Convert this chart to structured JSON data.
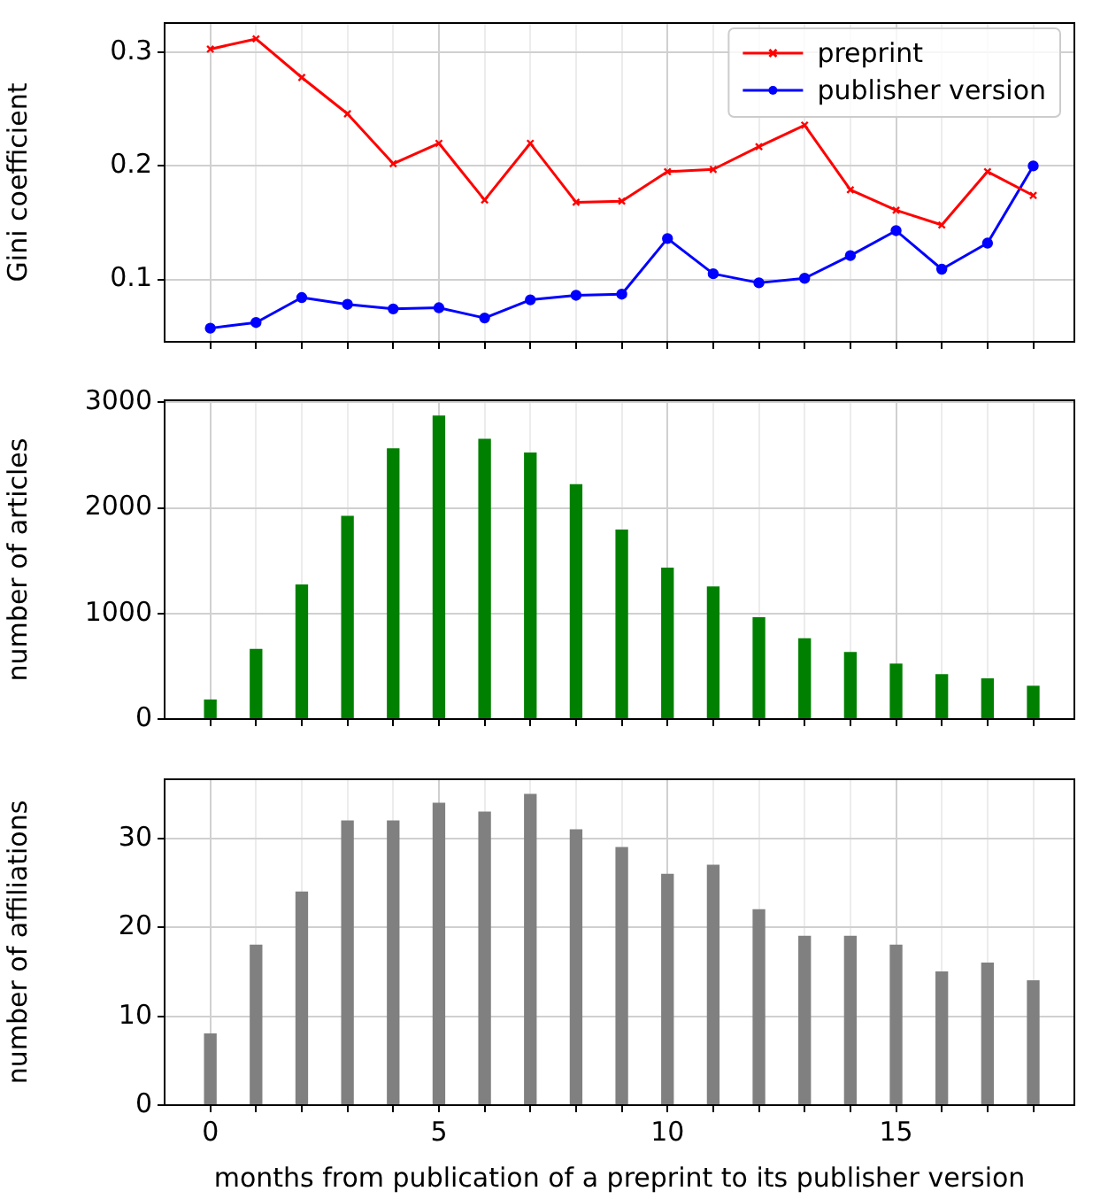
{
  "chart_data": [
    {
      "type": "line",
      "ylabel": "Gini coefficient",
      "x": [
        0,
        1,
        2,
        3,
        4,
        5,
        6,
        7,
        8,
        9,
        10,
        11,
        12,
        13,
        14,
        15,
        16,
        17,
        18
      ],
      "series": [
        {
          "name": "preprint",
          "color": "#ff0000",
          "marker": "cross",
          "values": [
            0.303,
            0.312,
            0.278,
            0.246,
            0.202,
            0.22,
            0.17,
            0.22,
            0.168,
            0.169,
            0.195,
            0.197,
            0.217,
            0.236,
            0.179,
            0.161,
            0.148,
            0.195,
            0.174
          ]
        },
        {
          "name": "publisher version",
          "color": "#0000ff",
          "marker": "circle",
          "values": [
            0.057,
            0.062,
            0.084,
            0.078,
            0.074,
            0.075,
            0.066,
            0.082,
            0.086,
            0.087,
            0.136,
            0.105,
            0.097,
            0.101,
            0.121,
            0.143,
            0.109,
            0.132,
            0.2
          ]
        }
      ],
      "xlim": [
        -1,
        18.9
      ],
      "xticks": [
        0,
        {
          "value": 1,
          "label": null
        },
        {
          "value": 2,
          "label": null
        },
        {
          "value": 3,
          "label": null
        },
        {
          "value": 4,
          "label": null
        },
        5,
        {
          "value": 6,
          "label": null
        },
        {
          "value": 7,
          "label": null
        },
        {
          "value": 8,
          "label": null
        },
        {
          "value": 9,
          "label": null
        },
        10,
        {
          "value": 11,
          "label": null
        },
        {
          "value": 12,
          "label": null
        },
        {
          "value": 13,
          "label": null
        },
        {
          "value": 14,
          "label": null
        },
        15,
        {
          "value": 16,
          "label": null
        },
        {
          "value": 17,
          "label": null
        },
        {
          "value": 18,
          "label": null
        }
      ],
      "ylim": [
        0.045,
        0.326
      ],
      "yticks": [
        0.1,
        0.2,
        0.3
      ],
      "grid": true,
      "legend": "top right",
      "tick_labels": "y"
    },
    {
      "type": "bar",
      "ylabel": "number of articles",
      "x": [
        0,
        1,
        2,
        3,
        4,
        5,
        6,
        7,
        8,
        9,
        10,
        11,
        12,
        13,
        14,
        15,
        16,
        17,
        18
      ],
      "series": [
        {
          "color": "#008000",
          "values": [
            180,
            660,
            1270,
            1920,
            2560,
            2870,
            2650,
            2520,
            2220,
            1790,
            1430,
            1250,
            960,
            760,
            630,
            520,
            420,
            380,
            310
          ]
        }
      ],
      "xlim": [
        -1,
        18.9
      ],
      "xticks": [
        0,
        {
          "value": 1,
          "label": null
        },
        {
          "value": 2,
          "label": null
        },
        {
          "value": 3,
          "label": null
        },
        {
          "value": 4,
          "label": null
        },
        5,
        {
          "value": 6,
          "label": null
        },
        {
          "value": 7,
          "label": null
        },
        {
          "value": 8,
          "label": null
        },
        {
          "value": 9,
          "label": null
        },
        10,
        {
          "value": 11,
          "label": null
        },
        {
          "value": 12,
          "label": null
        },
        {
          "value": 13,
          "label": null
        },
        {
          "value": 14,
          "label": null
        },
        15,
        {
          "value": 16,
          "label": null
        },
        {
          "value": 17,
          "label": null
        },
        {
          "value": 18,
          "label": null
        }
      ],
      "ylim": [
        0,
        3020
      ],
      "yticks": [
        0,
        1000,
        2000,
        3000
      ],
      "grid": true,
      "tick_labels": "y"
    },
    {
      "type": "bar",
      "xlabel": "months from publication of a preprint to its publisher version",
      "ylabel": "number of affiliations",
      "x": [
        0,
        1,
        2,
        3,
        4,
        5,
        6,
        7,
        8,
        9,
        10,
        11,
        12,
        13,
        14,
        15,
        16,
        17,
        18
      ],
      "series": [
        {
          "color": "#808080",
          "values": [
            8,
            18,
            24,
            32,
            32,
            34,
            33,
            35,
            31,
            29,
            26,
            27,
            22,
            19,
            19,
            18,
            15,
            16,
            14
          ]
        }
      ],
      "xlim": [
        -1,
        18.9
      ],
      "xticks": [
        0,
        {
          "value": 1,
          "label": null
        },
        {
          "value": 2,
          "label": null
        },
        {
          "value": 3,
          "label": null
        },
        {
          "value": 4,
          "label": null
        },
        5,
        {
          "value": 6,
          "label": null
        },
        {
          "value": 7,
          "label": null
        },
        {
          "value": 8,
          "label": null
        },
        {
          "value": 9,
          "label": null
        },
        10,
        {
          "value": 11,
          "label": null
        },
        {
          "value": 12,
          "label": null
        },
        {
          "value": 13,
          "label": null
        },
        {
          "value": 14,
          "label": null
        },
        15,
        {
          "value": 16,
          "label": null
        },
        {
          "value": 17,
          "label": null
        },
        {
          "value": 18,
          "label": null
        }
      ],
      "ylim": [
        0,
        36.7
      ],
      "yticks": [
        0,
        10,
        20,
        30
      ],
      "grid": true
    }
  ]
}
